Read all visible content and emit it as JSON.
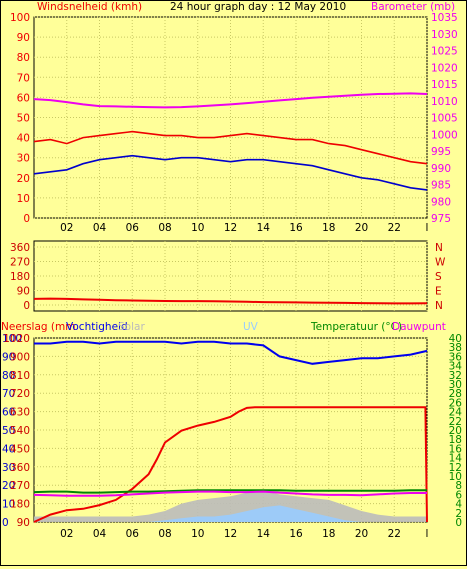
{
  "header": {
    "left_label": "Windsnelheid (kmh)",
    "title": "24 hour graph day : 12 May 2010",
    "right_label": "Barometer (mb)"
  },
  "colors": {
    "background": "#ffff99",
    "panel_border": "#000000",
    "grid": "#c8c864",
    "wind": "#ee0000",
    "gust_avg": "#0000cc",
    "barometer": "#ee00ee",
    "direction": "#ee0000",
    "rain": "#ee0000",
    "humidity": "#0000ee",
    "temperature": "#008800",
    "dewpoint": "#ee00ee",
    "solar": "#bbbbbb",
    "uv": "#99ccff",
    "left_axis_text": "#ee0000",
    "barometer_axis_text": "#ee00ee",
    "right_axis_text": "#008800",
    "dir_axis_text": "#cc0000"
  },
  "chart_data": [
    {
      "type": "line",
      "name": "wind_barometer",
      "x_ticks": [
        "02",
        "04",
        "06",
        "08",
        "10",
        "12",
        "14",
        "16",
        "18",
        "20",
        "22",
        "l"
      ],
      "ylim_left": [
        0,
        100
      ],
      "yticks_left": [
        "100",
        "90",
        "80",
        "70",
        "60",
        "50",
        "40",
        "30",
        "20",
        "10",
        "0"
      ],
      "ylim_right": [
        975,
        1035
      ],
      "yticks_right": [
        "1035",
        "1030",
        "1025",
        "1020",
        "1015",
        "1010",
        "1005",
        "1000",
        "995",
        "990",
        "985",
        "980",
        "975"
      ],
      "series": [
        {
          "name": "Windsnelheid (kmh)",
          "axis": "left",
          "x": [
            0,
            1,
            2,
            3,
            4,
            5,
            6,
            7,
            8,
            9,
            10,
            11,
            12,
            13,
            14,
            15,
            16,
            17,
            18,
            19,
            20,
            21,
            22,
            23,
            24
          ],
          "values": [
            38,
            39,
            37,
            40,
            41,
            42,
            43,
            42,
            41,
            41,
            40,
            40,
            41,
            42,
            41,
            40,
            39,
            39,
            37,
            36,
            34,
            32,
            30,
            28,
            27
          ]
        },
        {
          "name": "",
          "axis": "left",
          "x": [
            0,
            1,
            2,
            3,
            4,
            5,
            6,
            7,
            8,
            9,
            10,
            11,
            12,
            13,
            14,
            15,
            16,
            17,
            18,
            19,
            20,
            21,
            22,
            23,
            24
          ],
          "values": [
            22,
            23,
            24,
            27,
            29,
            30,
            31,
            30,
            29,
            30,
            30,
            29,
            28,
            29,
            29,
            28,
            27,
            26,
            24,
            22,
            20,
            19,
            17,
            15,
            14
          ]
        },
        {
          "name": "Barometer (mb)",
          "axis": "right",
          "x": [
            0,
            1,
            2,
            3,
            4,
            5,
            6,
            7,
            8,
            9,
            10,
            11,
            12,
            13,
            14,
            15,
            16,
            17,
            18,
            19,
            20,
            21,
            22,
            23,
            24
          ],
          "values": [
            1010.5,
            1010.2,
            1009.6,
            1008.9,
            1008.4,
            1008.3,
            1008.2,
            1008.1,
            1008.0,
            1008.1,
            1008.3,
            1008.6,
            1008.9,
            1009.3,
            1009.7,
            1010.1,
            1010.5,
            1010.9,
            1011.2,
            1011.5,
            1011.8,
            1012.0,
            1012.1,
            1012.2,
            1012.0
          ]
        }
      ]
    },
    {
      "type": "line",
      "name": "wind_direction",
      "x_ticks": [
        "02",
        "04",
        "06",
        "08",
        "10",
        "12",
        "14",
        "16",
        "18",
        "20",
        "22",
        "l"
      ],
      "ylim": [
        0,
        360
      ],
      "yticks_left": [
        "360",
        "270",
        "180",
        "90",
        "0"
      ],
      "yticks_right": [
        "N",
        "W",
        "S",
        "E",
        "N"
      ],
      "series": [
        {
          "name": "",
          "x": [
            0,
            1,
            2,
            3,
            4,
            5,
            6,
            7,
            8,
            9,
            10,
            11,
            12,
            13,
            14,
            15,
            16,
            17,
            18,
            19,
            20,
            21,
            22,
            23,
            24
          ],
          "values": [
            38,
            40,
            38,
            35,
            32,
            30,
            28,
            26,
            25,
            24,
            24,
            23,
            22,
            20,
            18,
            17,
            16,
            15,
            14,
            13,
            12,
            11,
            10,
            10,
            11
          ]
        }
      ]
    },
    {
      "type": "line",
      "name": "rain_humidity_temperature",
      "x_ticks": [
        "02",
        "04",
        "06",
        "08",
        "10",
        "12",
        "14",
        "16",
        "18",
        "20",
        "22",
        "l"
      ],
      "ylim_rain": [
        0,
        25
      ],
      "yticks_rain": [
        "25",
        "20",
        "15",
        "10",
        "5",
        "0"
      ],
      "ylim_humidity": [
        0,
        100
      ],
      "yticks_humidity": [
        "100",
        "90",
        "80",
        "70",
        "60",
        "50",
        "40",
        "30",
        "20",
        "10",
        "0"
      ],
      "yticks_solar": [
        "1020",
        "900",
        "810",
        "720",
        "630",
        "540",
        "450",
        "360",
        "270",
        "180",
        "90",
        "0"
      ],
      "ylim_temperature": [
        0,
        40
      ],
      "yticks_temperature": [
        "40",
        "38",
        "36",
        "34",
        "32",
        "30",
        "28",
        "26",
        "24",
        "22",
        "20",
        "18",
        "16",
        "14",
        "12",
        "10",
        "8",
        "6",
        "4",
        "2",
        "0"
      ],
      "labels": {
        "left": "Neerslag (mm",
        "humidity": "Vochtigheid",
        "solar": "Solar",
        "uv": "UV",
        "right": "Temperatuur (°C)",
        "dewpoint": "Dauwpunt"
      },
      "series": [
        {
          "name": "Neerslag (mm",
          "axis": "rain",
          "x": [
            0,
            1,
            2,
            3,
            4,
            5,
            6,
            7,
            7.5,
            8,
            9,
            10,
            11,
            12,
            12.5,
            13,
            13.5,
            14,
            15,
            16,
            17,
            18,
            19,
            20,
            21,
            22,
            23,
            23.9,
            24
          ],
          "values": [
            0,
            1,
            1.6,
            1.8,
            2.3,
            3.0,
            4.5,
            6.5,
            8.5,
            10.8,
            12.4,
            13.1,
            13.6,
            14.3,
            15.0,
            15.5,
            15.6,
            15.6,
            15.6,
            15.6,
            15.6,
            15.6,
            15.6,
            15.6,
            15.6,
            15.6,
            15.6,
            15.6,
            0
          ]
        },
        {
          "name": "Vochtigheid",
          "axis": "humidity",
          "x": [
            0,
            1,
            2,
            3,
            4,
            5,
            6,
            7,
            8,
            9,
            10,
            11,
            12,
            13,
            14,
            15,
            16,
            17,
            18,
            19,
            20,
            21,
            22,
            23,
            24
          ],
          "values": [
            97,
            97,
            98,
            98,
            97,
            98,
            98,
            98,
            98,
            97,
            98,
            98,
            97,
            97,
            96,
            90,
            88,
            86,
            87,
            88,
            89,
            89,
            90,
            91,
            93
          ]
        },
        {
          "name": "Temperatuur (°C)",
          "axis": "temperature",
          "x": [
            0,
            1,
            2,
            3,
            4,
            5,
            6,
            7,
            8,
            9,
            10,
            11,
            12,
            13,
            14,
            15,
            16,
            17,
            18,
            19,
            20,
            21,
            22,
            23,
            24
          ],
          "values": [
            6.5,
            6.6,
            6.6,
            6.4,
            6.4,
            6.5,
            6.6,
            6.6,
            6.7,
            6.8,
            6.9,
            6.9,
            6.9,
            6.9,
            6.9,
            6.9,
            6.8,
            6.8,
            6.8,
            6.8,
            6.8,
            6.8,
            6.8,
            6.9,
            6.9
          ]
        },
        {
          "name": "Dauwpunt",
          "axis": "temperature",
          "x": [
            0,
            1,
            2,
            3,
            4,
            5,
            6,
            7,
            8,
            9,
            10,
            11,
            12,
            13,
            14,
            15,
            16,
            17,
            18,
            19,
            20,
            21,
            22,
            23,
            24
          ],
          "values": [
            5.9,
            5.8,
            5.7,
            5.7,
            5.7,
            5.8,
            6.0,
            6.2,
            6.4,
            6.5,
            6.6,
            6.6,
            6.5,
            6.5,
            6.6,
            6.4,
            6.2,
            6.0,
            5.9,
            5.9,
            5.8,
            6.0,
            6.2,
            6.3,
            6.3
          ]
        },
        {
          "name": "Solar",
          "axis": "humidity",
          "x": [
            0,
            1,
            2,
            3,
            4,
            5,
            6,
            7,
            8,
            9,
            10,
            11,
            12,
            13,
            14,
            15,
            16,
            17,
            18,
            19,
            20,
            21,
            22,
            23,
            24
          ],
          "values": [
            3,
            3,
            3,
            3,
            3,
            3,
            3,
            4,
            6,
            10,
            12,
            13,
            14,
            16,
            17,
            15,
            14,
            13,
            12,
            9,
            6,
            4,
            3,
            3,
            3
          ]
        },
        {
          "name": "UV",
          "axis": "humidity",
          "x": [
            0,
            1,
            2,
            3,
            4,
            5,
            6,
            7,
            8,
            9,
            10,
            11,
            12,
            13,
            14,
            15,
            16,
            17,
            18,
            19,
            20,
            21,
            22,
            23,
            24
          ],
          "values": [
            0,
            0,
            0,
            0,
            0,
            0,
            0,
            0,
            1,
            2,
            3,
            3,
            4,
            6,
            8,
            9,
            7,
            5,
            3,
            1,
            0,
            0,
            0,
            0,
            0
          ]
        }
      ]
    }
  ]
}
